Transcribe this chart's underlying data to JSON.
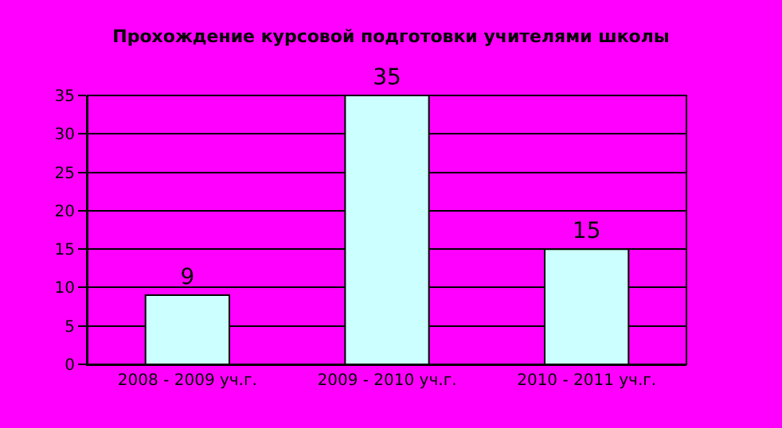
{
  "chart_data": {
    "type": "bar",
    "title": "Прохождение курсовой подготовки учителями школы",
    "categories": [
      "2008 - 2009 уч.г.",
      "2009 - 2010 уч.г.",
      "2010 - 2011 уч.г."
    ],
    "values": [
      9,
      35,
      15
    ],
    "color": "#ccffff",
    "ylim": [
      0,
      35
    ],
    "yticks": [
      0,
      5,
      10,
      15,
      20,
      25,
      30,
      35
    ],
    "grid": "y",
    "data_labels": true,
    "legend": false
  }
}
